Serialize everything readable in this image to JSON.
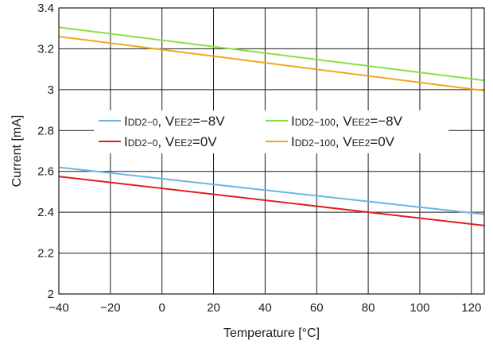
{
  "chart_data": {
    "type": "line",
    "xlabel": "Temperature [°C]",
    "ylabel": "Current [mA]",
    "xlim": [
      -40,
      125
    ],
    "ylim": [
      2,
      3.4
    ],
    "x_ticks": [
      "−40",
      "−20",
      "0",
      "20",
      "40",
      "60",
      "80",
      "100",
      "120"
    ],
    "x_tick_values": [
      -40,
      -20,
      0,
      20,
      40,
      60,
      80,
      100,
      120
    ],
    "y_ticks": [
      "2",
      "2.2",
      "2.4",
      "2.6",
      "2.8",
      "3",
      "3.2",
      "3.4"
    ],
    "y_tick_values": [
      2,
      2.2,
      2.4,
      2.6,
      2.8,
      3,
      3.2,
      3.4
    ],
    "grid": true,
    "legend_position": "middle-left",
    "series": [
      {
        "name": "IDD2−0, VEE2=−8V",
        "label_parts": {
          "main": "I",
          "sub": "DD2−0",
          "mid": ", V",
          "sub2": "EE2",
          "tail": "=−8V"
        },
        "color": "#6cb4e8",
        "x": [
          -40,
          125
        ],
        "y": [
          2.62,
          2.39
        ]
      },
      {
        "name": "IDD2−0, VEE2=0V",
        "label_parts": {
          "main": "I",
          "sub": "DD2−0",
          "mid": ", V",
          "sub2": "EE2",
          "tail": "=0V"
        },
        "color": "#e02020",
        "x": [
          -40,
          125
        ],
        "y": [
          2.575,
          2.335
        ]
      },
      {
        "name": "IDD2−100, VEE2=−8V",
        "label_parts": {
          "main": "I",
          "sub": "DD2−100",
          "mid": ", V",
          "sub2": "EE2",
          "tail": "=−8V"
        },
        "color": "#88e040",
        "x": [
          -40,
          125
        ],
        "y": [
          3.305,
          3.045
        ]
      },
      {
        "name": "IDD2−100, VEE2=0V",
        "label_parts": {
          "main": "I",
          "sub": "DD2−100",
          "mid": ", V",
          "sub2": "EE2",
          "tail": "=0V"
        },
        "color": "#f0a818",
        "x": [
          -40,
          125
        ],
        "y": [
          3.26,
          2.995
        ]
      }
    ]
  }
}
